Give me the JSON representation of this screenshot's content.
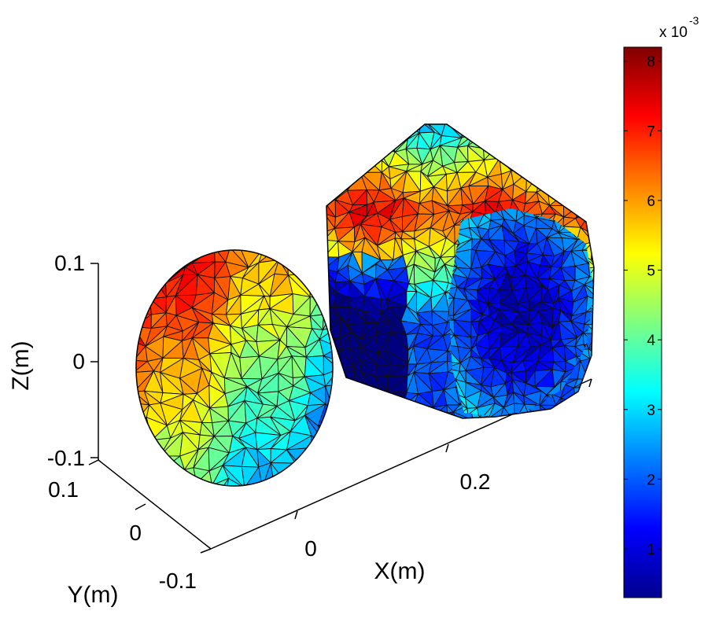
{
  "chart_data": {
    "type": "3d-surface",
    "xlabel": "X(m)",
    "ylabel": "Y(m)",
    "zlabel": "Z(m)",
    "x_ticks": [
      "0",
      "0.2"
    ],
    "y_ticks": [
      "0.1",
      "0",
      "-0.1"
    ],
    "z_ticks": [
      "0.1",
      "0",
      "-0.1"
    ],
    "objects": [
      {
        "name": "sphere",
        "shape": "triangulated sphere",
        "value_range": [
          0.0015,
          0.0062
        ]
      },
      {
        "name": "cylinder",
        "shape": "triangulated cylinder",
        "value_range": [
          0.0005,
          0.008
        ]
      }
    ],
    "colorbar": {
      "multiplier": "x 10",
      "exponent": "-3",
      "min": 0.3,
      "max": 8.2,
      "ticks": [
        "1",
        "2",
        "3",
        "4",
        "5",
        "6",
        "7",
        "8"
      ],
      "colormap": "jet"
    }
  }
}
